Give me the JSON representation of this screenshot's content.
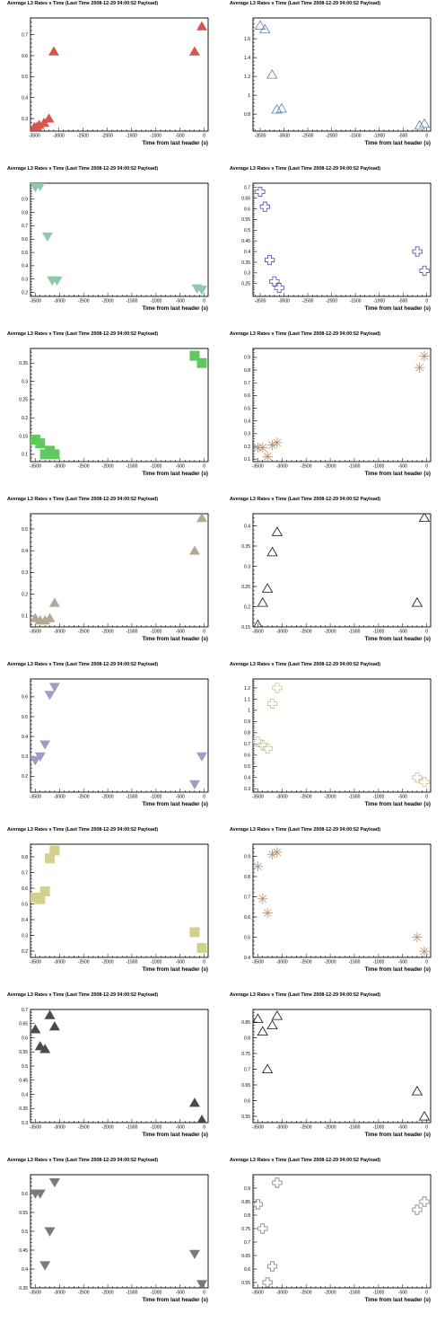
{
  "page": {
    "title": "Average L3 Rates v Time (Last Time 2008-12-29 04:00:52 Payload)",
    "xlabel": "Time from last header (s)"
  },
  "chart_data": [
    {
      "type": "scatter",
      "marker": "triangle-up",
      "filled": true,
      "color": "#d9544d",
      "title": "Average L3 Rates v Time (Last Time 2008-12-29 04:00:52 Payload)",
      "xlabel": "Time from last header (s)",
      "ylabel": "",
      "xlim": [
        -3580,
        80
      ],
      "ylim": [
        0.24,
        0.78
      ],
      "xticks": [
        -3500,
        -3000,
        -2500,
        -2000,
        -1500,
        -1000,
        -500,
        0
      ],
      "yticks": [
        0.3,
        0.4,
        0.5,
        0.6,
        0.7
      ],
      "x": [
        -3500,
        -3450,
        -3400,
        -3300,
        -3200,
        -3100,
        -200,
        -50
      ],
      "y": [
        0.26,
        0.26,
        0.27,
        0.28,
        0.3,
        0.62,
        0.62,
        0.74
      ]
    },
    {
      "type": "scatter",
      "marker": "triangle-up",
      "filled": false,
      "color": "#5b7fa6",
      "title": "Average L3 Rates v Time (Last Time 2008-12-29 04:00:52 Payload)",
      "xlabel": "Time from last header (s)",
      "ylabel": "",
      "xlim": [
        -3650,
        80
      ],
      "ylim": [
        0.62,
        1.82
      ],
      "xticks": [
        -3500,
        -3000,
        -2500,
        -2000,
        -1500,
        -1000,
        -500,
        0
      ],
      "yticks": [
        0.8,
        1,
        1.2,
        1.4,
        1.6
      ],
      "x": [
        -3500,
        -3400,
        -3250,
        -3150,
        -3050,
        -150,
        -50
      ],
      "y": [
        1.74,
        1.7,
        1.22,
        0.85,
        0.86,
        0.68,
        0.7
      ]
    },
    {
      "type": "scatter",
      "marker": "triangle-down",
      "filled": true,
      "color": "#8ec9a8",
      "title": "Average L3 Rates v Time (Last Time 2008-12-29 04:00:52 Payload)",
      "xlabel": "Time from last header (s)",
      "ylabel": "",
      "xlim": [
        -3600,
        80
      ],
      "ylim": [
        0.17,
        1.02
      ],
      "xticks": [
        -3500,
        -3000,
        -2500,
        -2000,
        -1500,
        -1000,
        -500,
        0
      ],
      "yticks": [
        0.2,
        0.3,
        0.4,
        0.5,
        0.6,
        0.7,
        0.8,
        0.9
      ],
      "x": [
        -3500,
        -3400,
        -3250,
        -3150,
        -3050,
        -150,
        -50
      ],
      "y": [
        0.99,
        1.0,
        0.62,
        0.29,
        0.29,
        0.23,
        0.22
      ]
    },
    {
      "type": "scatter",
      "marker": "cross",
      "filled": false,
      "color": "#4848b0",
      "title": "Average L3 Rates v Time (Last Time 2008-12-29 04:00:52 Payload)",
      "xlabel": "Time from last header (s)",
      "ylabel": "",
      "xlim": [
        -3650,
        80
      ],
      "ylim": [
        0.19,
        0.72
      ],
      "xticks": [
        -3500,
        -3000,
        -2500,
        -2000,
        -1500,
        -1000,
        -500,
        0
      ],
      "yticks": [
        0.25,
        0.3,
        0.35,
        0.4,
        0.45,
        0.5,
        0.55,
        0.6,
        0.65,
        0.7
      ],
      "x": [
        -3500,
        -3400,
        -3300,
        -3200,
        -3100,
        -200,
        -50
      ],
      "y": [
        0.68,
        0.61,
        0.36,
        0.26,
        0.23,
        0.4,
        0.31
      ]
    },
    {
      "type": "scatter",
      "marker": "square",
      "filled": true,
      "color": "#5ec95e",
      "title": "Average L3 Rates v Time (Last Time 2008-12-29 04:00:52 Payload)",
      "xlabel": "Time from last header (s)",
      "ylabel": "",
      "xlim": [
        -3600,
        80
      ],
      "ylim": [
        0.08,
        0.39
      ],
      "xticks": [
        -3500,
        -3000,
        -2500,
        -2000,
        -1500,
        -1000,
        -500,
        0
      ],
      "yticks": [
        0.1,
        0.15,
        0.2,
        0.25,
        0.3,
        0.35
      ],
      "x": [
        -3500,
        -3400,
        -3300,
        -3200,
        -3100,
        -200,
        -50
      ],
      "y": [
        0.14,
        0.13,
        0.1,
        0.11,
        0.1,
        0.37,
        0.35
      ]
    },
    {
      "type": "scatter",
      "marker": "star",
      "filled": false,
      "color": "#b98b6a",
      "title": "Average L3 Rates v Time (Last Time 2008-12-29 04:00:52 Payload)",
      "xlabel": "Time from last header (s)",
      "ylabel": "",
      "xlim": [
        -3600,
        80
      ],
      "ylim": [
        0.08,
        0.97
      ],
      "xticks": [
        -3500,
        -3000,
        -2500,
        -2000,
        -1500,
        -1000,
        -500,
        0
      ],
      "yticks": [
        0.1,
        0.2,
        0.3,
        0.4,
        0.5,
        0.6,
        0.7,
        0.8,
        0.9
      ],
      "x": [
        -3500,
        -3400,
        -3300,
        -3200,
        -3100,
        -150,
        -50
      ],
      "y": [
        0.19,
        0.19,
        0.12,
        0.21,
        0.23,
        0.82,
        0.91
      ]
    },
    {
      "type": "scatter",
      "marker": "triangle-up",
      "filled": true,
      "color": "#b5a895",
      "title": "Average L3 Rates v Time (Last Time 2008-12-29 04:00:52 Payload)",
      "xlabel": "Time from last header (s)",
      "ylabel": "",
      "xlim": [
        -3600,
        80
      ],
      "ylim": [
        0.05,
        0.57
      ],
      "xticks": [
        -3500,
        -3000,
        -2500,
        -2000,
        -1500,
        -1000,
        -500,
        0
      ],
      "yticks": [
        0.1,
        0.2,
        0.3,
        0.4,
        0.5
      ],
      "x": [
        -3500,
        -3400,
        -3300,
        -3200,
        -3100,
        -200,
        -50
      ],
      "y": [
        0.09,
        0.08,
        0.08,
        0.09,
        0.16,
        0.4,
        0.55
      ]
    },
    {
      "type": "scatter",
      "marker": "triangle-up",
      "filled": false,
      "color": "#111111",
      "title": "Average L3 Rates v Time (Last Time 2008-12-29 04:00:52 Payload)",
      "xlabel": "Time from last header (s)",
      "ylabel": "",
      "xlim": [
        -3600,
        80
      ],
      "ylim": [
        0.15,
        0.43
      ],
      "xticks": [
        -3500,
        -3000,
        -2500,
        -2000,
        -1500,
        -1000,
        -500,
        0
      ],
      "yticks": [
        0.15,
        0.2,
        0.25,
        0.3,
        0.35,
        0.4
      ],
      "x": [
        -3500,
        -3400,
        -3300,
        -3200,
        -3100,
        -200,
        -50
      ],
      "y": [
        0.155,
        0.21,
        0.245,
        0.335,
        0.385,
        0.21,
        0.42
      ]
    },
    {
      "type": "scatter",
      "marker": "triangle-down",
      "filled": true,
      "color": "#9d9dc8",
      "title": "Average L3 Rates v Time (Last Time 2008-12-29 04:00:52 Payload)",
      "xlabel": "Time from last header (s)",
      "ylabel": "",
      "xlim": [
        -3600,
        80
      ],
      "ylim": [
        0.12,
        0.69
      ],
      "xticks": [
        -3500,
        -3000,
        -2500,
        -2000,
        -1500,
        -1000,
        -500,
        0
      ],
      "yticks": [
        0.2,
        0.3,
        0.4,
        0.5,
        0.6
      ],
      "x": [
        -3500,
        -3400,
        -3300,
        -3200,
        -3100,
        -200,
        -50
      ],
      "y": [
        0.28,
        0.3,
        0.36,
        0.61,
        0.65,
        0.16,
        0.3
      ]
    },
    {
      "type": "scatter",
      "marker": "cross",
      "filled": false,
      "color": "#cbbf8e",
      "title": "Average L3 Rates v Time (Last Time 2008-12-29 04:00:52 Payload)",
      "xlabel": "Time from last header (s)",
      "ylabel": "",
      "xlim": [
        -3600,
        80
      ],
      "ylim": [
        0.27,
        1.28
      ],
      "xticks": [
        -3500,
        -3000,
        -2500,
        -2000,
        -1500,
        -1000,
        -500,
        0
      ],
      "yticks": [
        0.3,
        0.4,
        0.5,
        0.6,
        0.7,
        0.8,
        0.9,
        1,
        1.1,
        1.2
      ],
      "x": [
        -3500,
        -3400,
        -3300,
        -3200,
        -3100,
        -200,
        -50
      ],
      "y": [
        0.72,
        0.69,
        0.66,
        1.06,
        1.2,
        0.4,
        0.36
      ]
    },
    {
      "type": "scatter",
      "marker": "square",
      "filled": true,
      "color": "#d4cf8c",
      "title": "Average L3 Rates v Time (Last Time 2008-12-29 04:00:52 Payload)",
      "xlabel": "Time from last header (s)",
      "ylabel": "",
      "xlim": [
        -3600,
        80
      ],
      "ylim": [
        0.16,
        0.88
      ],
      "xticks": [
        -3500,
        -3000,
        -2500,
        -2000,
        -1500,
        -1000,
        -500,
        0
      ],
      "yticks": [
        0.2,
        0.3,
        0.4,
        0.5,
        0.6,
        0.7,
        0.8
      ],
      "x": [
        -3500,
        -3400,
        -3300,
        -3200,
        -3100,
        -200,
        -50
      ],
      "y": [
        0.54,
        0.53,
        0.58,
        0.79,
        0.84,
        0.32,
        0.22
      ]
    },
    {
      "type": "scatter",
      "marker": "star",
      "filled": false,
      "color": "#b88f70",
      "title": "Average L3 Rates v Time (Last Time 2008-12-29 04:00:52 Payload)",
      "xlabel": "Time from last header (s)",
      "ylabel": "",
      "xlim": [
        -3600,
        80
      ],
      "ylim": [
        0.4,
        0.96
      ],
      "xticks": [
        -3500,
        -3000,
        -2500,
        -2000,
        -1500,
        -1000,
        -500,
        0
      ],
      "yticks": [
        0.4,
        0.5,
        0.6,
        0.7,
        0.8,
        0.9
      ],
      "x": [
        -3500,
        -3400,
        -3300,
        -3200,
        -3100,
        -200,
        -50
      ],
      "y": [
        0.85,
        0.69,
        0.62,
        0.91,
        0.92,
        0.5,
        0.43
      ]
    },
    {
      "type": "scatter",
      "marker": "triangle-up",
      "filled": true,
      "color": "#4a4a4a",
      "title": "Average L3 Rates v Time (Last Time 2008-12-29 04:00:52 Payload)",
      "xlabel": "Time from last header (s)",
      "ylabel": "",
      "xlim": [
        -3600,
        80
      ],
      "ylim": [
        0.3,
        0.7
      ],
      "xticks": [
        -3500,
        -3000,
        -2500,
        -2000,
        -1500,
        -1000,
        -500,
        0
      ],
      "yticks": [
        0.3,
        0.35,
        0.4,
        0.45,
        0.5,
        0.55,
        0.6,
        0.65,
        0.7
      ],
      "x": [
        -3500,
        -3400,
        -3300,
        -3200,
        -3100,
        -200,
        -50
      ],
      "y": [
        0.63,
        0.57,
        0.56,
        0.68,
        0.64,
        0.37,
        0.31
      ]
    },
    {
      "type": "scatter",
      "marker": "triangle-up",
      "filled": false,
      "color": "#111111",
      "title": "Average L3 Rates v Time (Last Time 2008-12-29 04:00:52 Payload)",
      "xlabel": "Time from last header (s)",
      "ylabel": "",
      "xlim": [
        -3600,
        80
      ],
      "ylim": [
        0.53,
        0.89
      ],
      "xticks": [
        -3500,
        -3000,
        -2500,
        -2000,
        -1500,
        -1000,
        -500,
        0
      ],
      "yticks": [
        0.55,
        0.6,
        0.65,
        0.7,
        0.75,
        0.8,
        0.85
      ],
      "x": [
        -3500,
        -3400,
        -3300,
        -3200,
        -3100,
        -200,
        -50
      ],
      "y": [
        0.86,
        0.82,
        0.7,
        0.84,
        0.87,
        0.63,
        0.55
      ]
    },
    {
      "type": "scatter",
      "marker": "triangle-down",
      "filled": true,
      "color": "#7a7a7a",
      "title": "Average L3 Rates v Time (Last Time 2008-12-29 04:00:52 Payload)",
      "xlabel": "Time from last header (s)",
      "ylabel": "",
      "xlim": [
        -3600,
        80
      ],
      "ylim": [
        0.35,
        0.65
      ],
      "xticks": [
        -3500,
        -3000,
        -2500,
        -2000,
        -1500,
        -1000,
        -500,
        0
      ],
      "yticks": [
        0.35,
        0.4,
        0.45,
        0.5,
        0.55,
        0.6
      ],
      "x": [
        -3500,
        -3400,
        -3300,
        -3200,
        -3100,
        -200,
        -50
      ],
      "y": [
        0.6,
        0.6,
        0.41,
        0.5,
        0.63,
        0.44,
        0.36
      ]
    },
    {
      "type": "scatter",
      "marker": "cross",
      "filled": false,
      "color": "#7a7a7a",
      "title": "Average L3 Rates v Time (Last Time 2008-12-29 04:00:52 Payload)",
      "xlabel": "Time from last header (s)",
      "ylabel": "",
      "xlim": [
        -3600,
        80
      ],
      "ylim": [
        0.53,
        0.95
      ],
      "xticks": [
        -3500,
        -3000,
        -2500,
        -2000,
        -1500,
        -1000,
        -500,
        0
      ],
      "yticks": [
        0.55,
        0.6,
        0.65,
        0.7,
        0.75,
        0.8,
        0.85,
        0.9
      ],
      "x": [
        -3500,
        -3400,
        -3300,
        -3200,
        -3100,
        -200,
        -50
      ],
      "y": [
        0.84,
        0.75,
        0.55,
        0.61,
        0.92,
        0.82,
        0.85
      ]
    }
  ]
}
